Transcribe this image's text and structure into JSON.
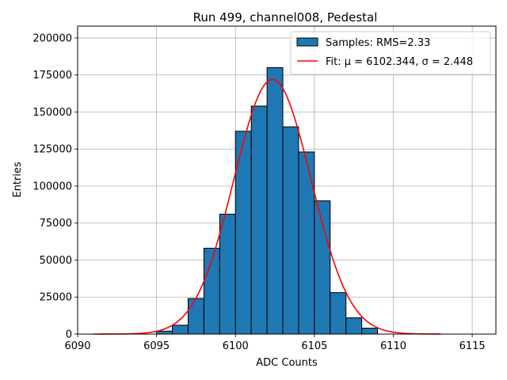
{
  "chart_data": {
    "type": "bar",
    "title": "Run 499, channel008, Pedestal",
    "xlabel": "ADC Counts",
    "ylabel": "Entries",
    "xlim": [
      6090,
      6116.5
    ],
    "ylim": [
      0,
      208000
    ],
    "x_ticks": [
      6090,
      6095,
      6100,
      6105,
      6110,
      6115
    ],
    "y_ticks": [
      0,
      25000,
      50000,
      75000,
      100000,
      125000,
      150000,
      175000,
      200000
    ],
    "grid": true,
    "legend_position": "top-right",
    "bin_width": 1,
    "bin_edges": [
      6095,
      6096,
      6097,
      6098,
      6099,
      6100,
      6101,
      6102,
      6103,
      6104,
      6105,
      6106,
      6107,
      6108,
      6109
    ],
    "counts": [
      2000,
      6000,
      24000,
      58000,
      81000,
      137000,
      154000,
      180000,
      140000,
      123000,
      90000,
      28000,
      11000,
      4000
    ],
    "series": [
      {
        "name": "Samples: RMS=2.33",
        "kind": "histogram",
        "color": "#1f77b4"
      },
      {
        "name": "Fit: μ = 6102.344, σ = 2.448",
        "kind": "gaussian-fit",
        "color": "#ff0000",
        "amplitude": 172000,
        "mu": 6102.344,
        "sigma": 2.448,
        "x_range": [
          6091,
          6113
        ]
      }
    ]
  }
}
